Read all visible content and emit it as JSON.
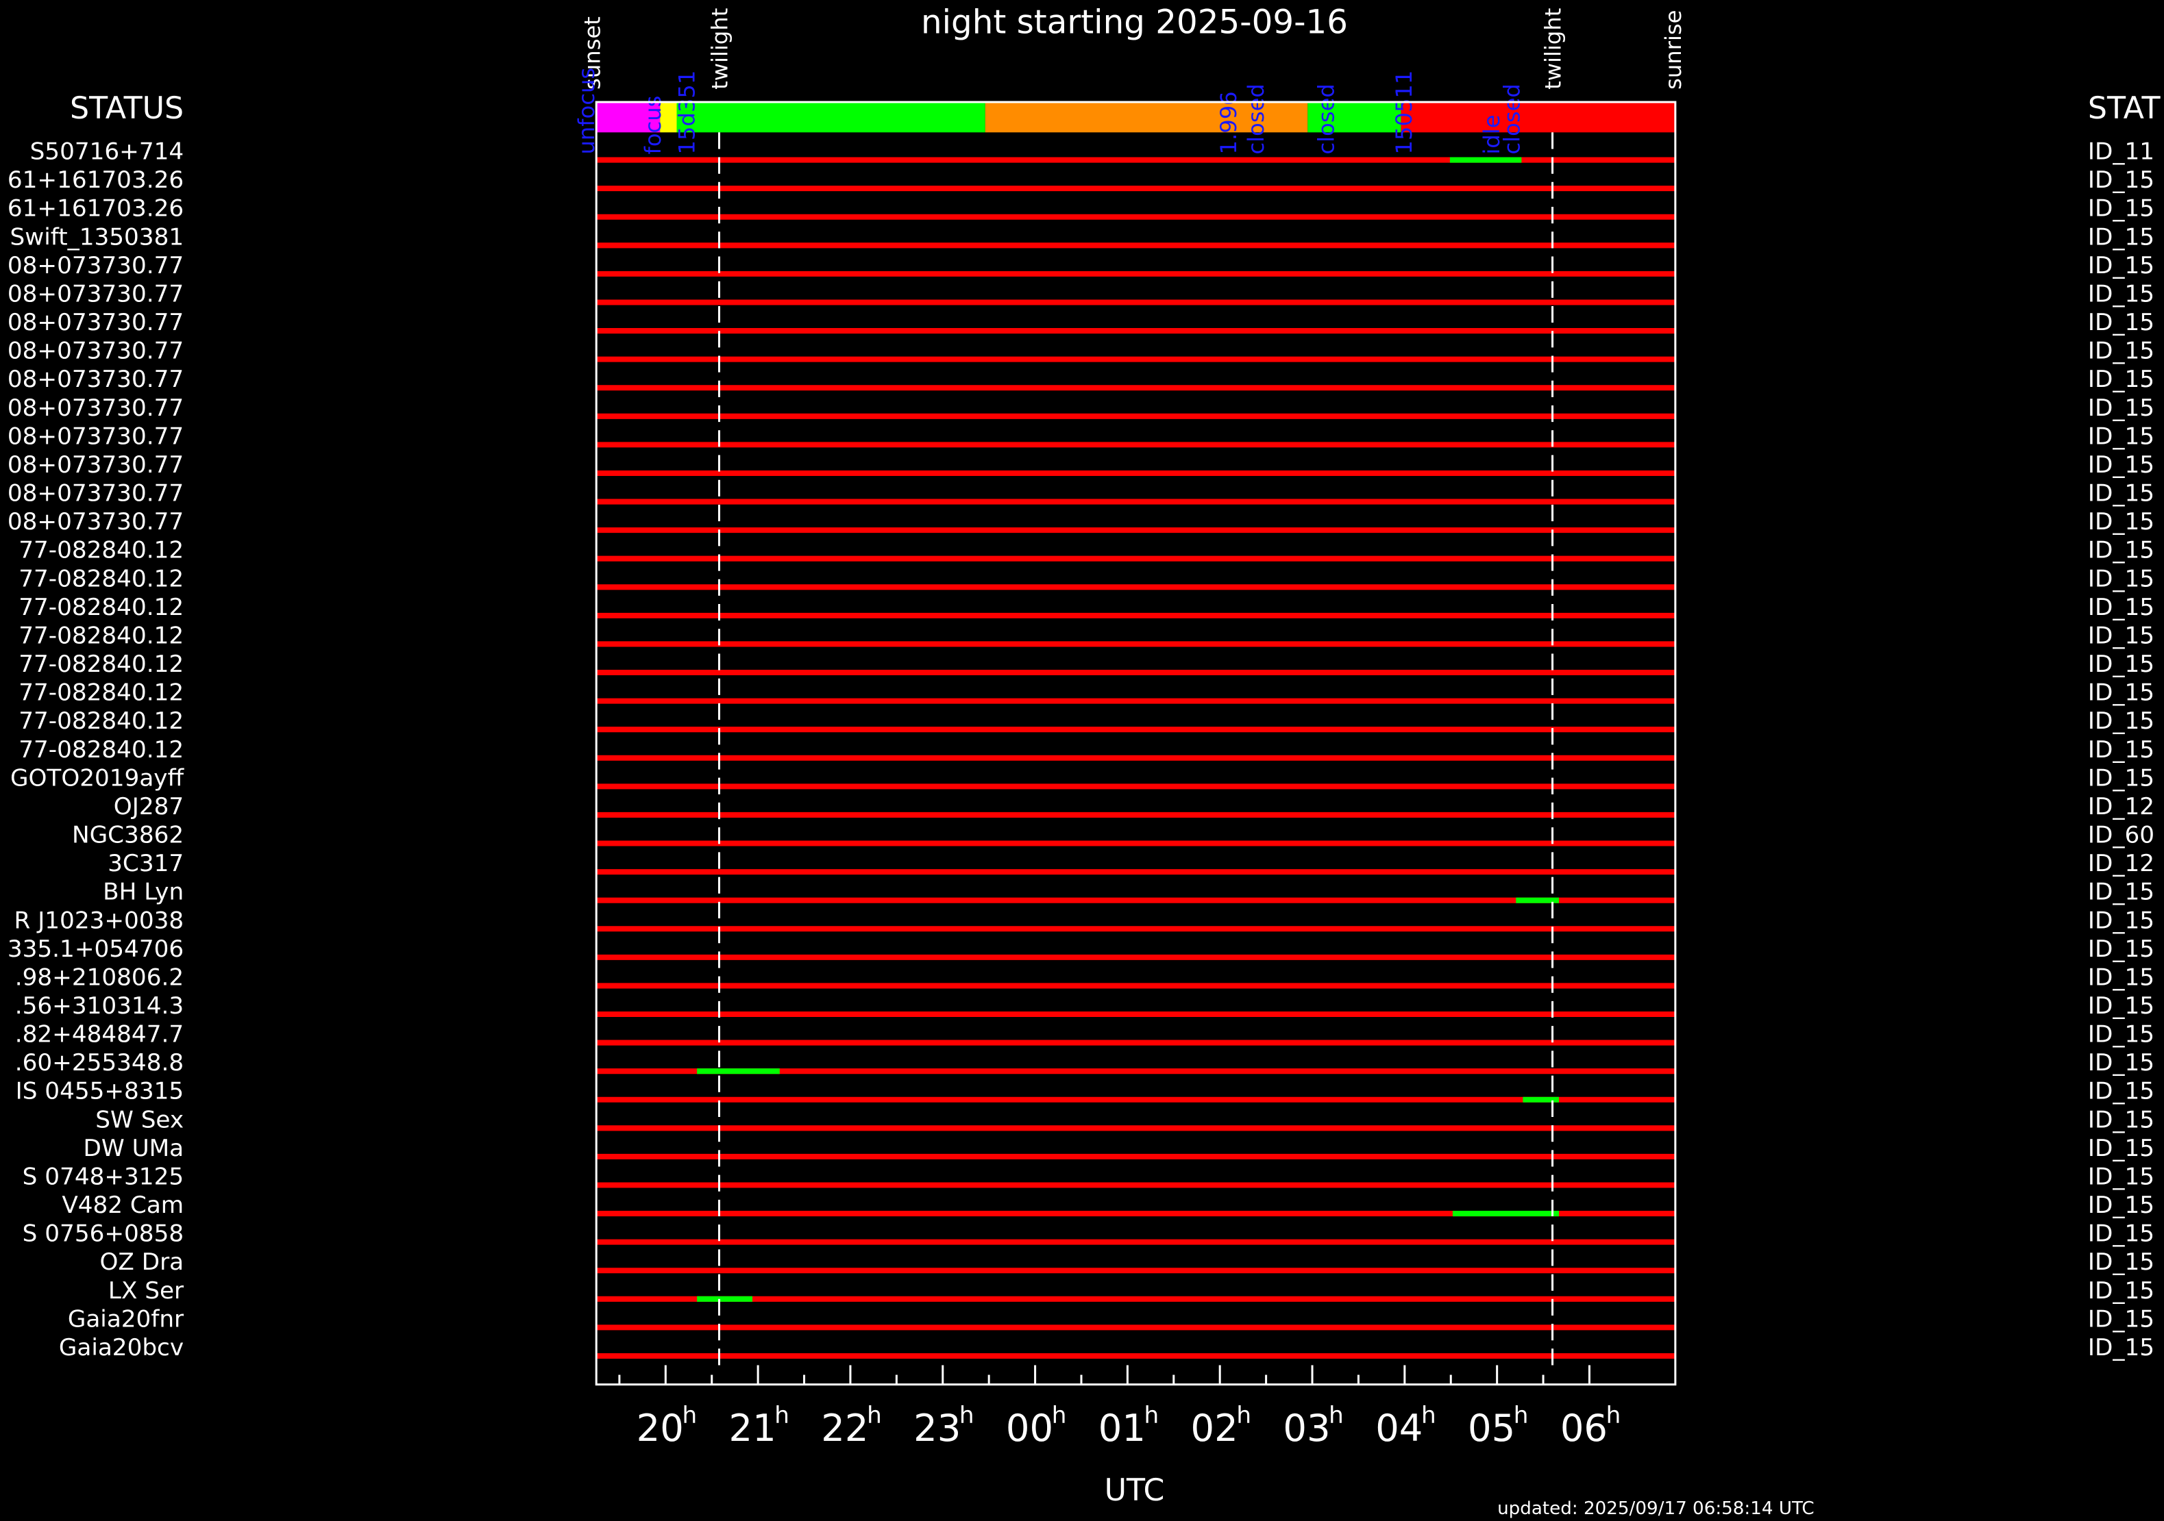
{
  "chart_data": {
    "type": "timeline",
    "title": "night starting 2025-09-16",
    "xlabel": "UTC",
    "left_header": "STATUS",
    "right_header": "STAT",
    "footer": "updated: 2025/09/17 06:58:14 UTC",
    "xlim": [
      19.25,
      30.93
    ],
    "xticks": [
      20,
      21,
      22,
      23,
      {
        "value": 24,
        "label": "00"
      },
      {
        "value": 25,
        "label": "01"
      },
      {
        "value": 26,
        "label": "02"
      },
      {
        "value": 27,
        "label": "03"
      },
      {
        "value": 28,
        "label": "04"
      },
      {
        "value": 29,
        "label": "05"
      },
      {
        "value": 30,
        "label": "06"
      }
    ],
    "xtick_suffix": "h",
    "events": [
      {
        "label": "sunset",
        "x": 19.2,
        "line": false
      },
      {
        "label": "twilight",
        "x": 20.58,
        "line": true
      },
      {
        "label": "twilight",
        "x": 29.6,
        "line": true
      },
      {
        "label": "sunrise",
        "x": 30.9,
        "line": false
      }
    ],
    "status_segments": [
      {
        "start": 19.25,
        "end": 19.94,
        "color": "#ff00ff"
      },
      {
        "start": 19.94,
        "end": 20.12,
        "color": "#ffff00"
      },
      {
        "start": 20.12,
        "end": 23.46,
        "color": "#00ff00"
      },
      {
        "start": 23.46,
        "end": 26.95,
        "color": "#ff8c00"
      },
      {
        "start": 26.95,
        "end": 27.96,
        "color": "#00ff00"
      },
      {
        "start": 27.96,
        "end": 30.93,
        "color": "#ff0000"
      }
    ],
    "status_labels": [
      {
        "label": "unfocus",
        "x": 19.15
      },
      {
        "label": "focus",
        "x": 19.87
      },
      {
        "label": "15d351",
        "x": 20.24
      },
      {
        "label": "1.996",
        "x": 26.1
      },
      {
        "label": "closed",
        "x": 26.4
      },
      {
        "label": "closed",
        "x": 27.16
      },
      {
        "label": "150511",
        "x": 28.0
      },
      {
        "label": "idle",
        "x": 28.95
      },
      {
        "label": "closed",
        "x": 29.17
      }
    ],
    "row_color": "#ff0000",
    "observation_color": "#00ff00",
    "rows": [
      {
        "name": "S50716+714",
        "id": "ID_11",
        "observations": [
          [
            28.49,
            29.265
          ]
        ]
      },
      {
        "name": "61+161703.26",
        "id": "ID_15",
        "observations": []
      },
      {
        "name": "61+161703.26",
        "id": "ID_15",
        "observations": []
      },
      {
        "name": "Swift_1350381",
        "id": "ID_15",
        "observations": []
      },
      {
        "name": "08+073730.77",
        "id": "ID_15",
        "observations": []
      },
      {
        "name": "08+073730.77",
        "id": "ID_15",
        "observations": []
      },
      {
        "name": "08+073730.77",
        "id": "ID_15",
        "observations": []
      },
      {
        "name": "08+073730.77",
        "id": "ID_15",
        "observations": []
      },
      {
        "name": "08+073730.77",
        "id": "ID_15",
        "observations": []
      },
      {
        "name": "08+073730.77",
        "id": "ID_15",
        "observations": []
      },
      {
        "name": "08+073730.77",
        "id": "ID_15",
        "observations": []
      },
      {
        "name": "08+073730.77",
        "id": "ID_15",
        "observations": []
      },
      {
        "name": "08+073730.77",
        "id": "ID_15",
        "observations": []
      },
      {
        "name": "08+073730.77",
        "id": "ID_15",
        "observations": []
      },
      {
        "name": "77-082840.12",
        "id": "ID_15",
        "observations": []
      },
      {
        "name": "77-082840.12",
        "id": "ID_15",
        "observations": []
      },
      {
        "name": "77-082840.12",
        "id": "ID_15",
        "observations": []
      },
      {
        "name": "77-082840.12",
        "id": "ID_15",
        "observations": []
      },
      {
        "name": "77-082840.12",
        "id": "ID_15",
        "observations": []
      },
      {
        "name": "77-082840.12",
        "id": "ID_15",
        "observations": []
      },
      {
        "name": "77-082840.12",
        "id": "ID_15",
        "observations": []
      },
      {
        "name": "77-082840.12",
        "id": "ID_15",
        "observations": []
      },
      {
        "name": "GOTO2019ayff",
        "id": "ID_15",
        "observations": []
      },
      {
        "name": "OJ287",
        "id": "ID_12",
        "observations": []
      },
      {
        "name": "NGC3862",
        "id": "ID_60",
        "observations": []
      },
      {
        "name": "3C317",
        "id": "ID_12",
        "observations": []
      },
      {
        "name": "BH Lyn",
        "id": "ID_15",
        "observations": [
          [
            29.205,
            29.67
          ]
        ]
      },
      {
        "name": "R J1023+0038",
        "id": "ID_15",
        "observations": []
      },
      {
        "name": "335.1+054706",
        "id": "ID_15",
        "observations": []
      },
      {
        "name": ".98+210806.2",
        "id": "ID_15",
        "observations": []
      },
      {
        "name": ".56+310314.3",
        "id": "ID_15",
        "observations": []
      },
      {
        "name": ".82+484847.7",
        "id": "ID_15",
        "observations": []
      },
      {
        "name": ".60+255348.8",
        "id": "ID_15",
        "observations": [
          [
            20.34,
            21.235
          ]
        ]
      },
      {
        "name": "IS 0455+8315",
        "id": "ID_15",
        "observations": [
          [
            29.28,
            29.67
          ]
        ]
      },
      {
        "name": "SW Sex",
        "id": "ID_15",
        "observations": []
      },
      {
        "name": "DW UMa",
        "id": "ID_15",
        "observations": []
      },
      {
        "name": "S 0748+3125",
        "id": "ID_15",
        "observations": []
      },
      {
        "name": "V482 Cam",
        "id": "ID_15",
        "observations": [
          [
            28.52,
            29.67
          ]
        ]
      },
      {
        "name": "S 0756+0858",
        "id": "ID_15",
        "observations": []
      },
      {
        "name": "OZ Dra",
        "id": "ID_15",
        "observations": []
      },
      {
        "name": "LX Ser",
        "id": "ID_15",
        "observations": [
          [
            20.34,
            20.94
          ]
        ]
      },
      {
        "name": "Gaia20fnr",
        "id": "ID_15",
        "observations": []
      },
      {
        "name": "Gaia20bcv",
        "id": "ID_15",
        "observations": []
      }
    ]
  }
}
